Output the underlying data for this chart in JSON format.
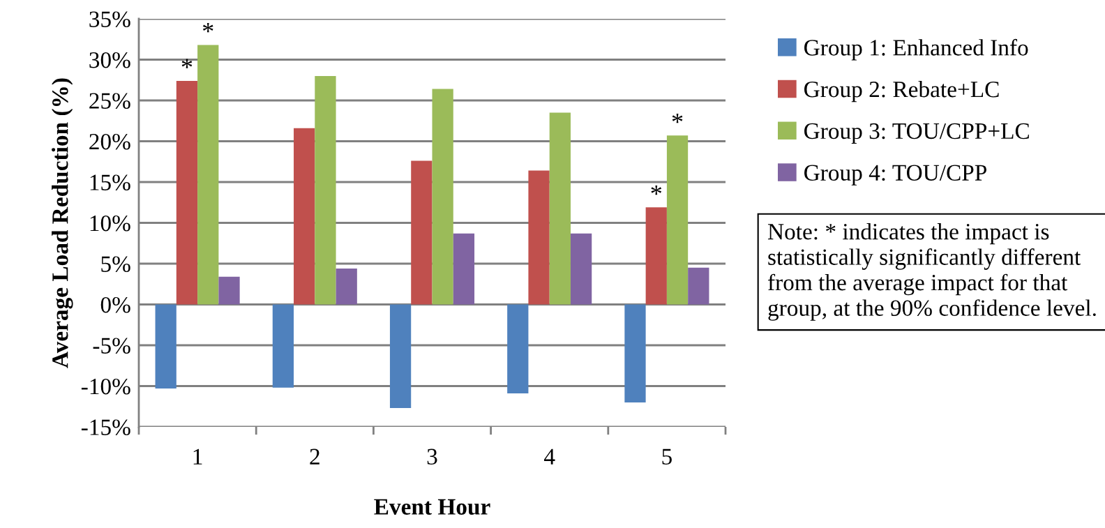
{
  "chart_data": {
    "type": "bar",
    "xlabel": "Event Hour",
    "ylabel": "Average Load Reduction (%)",
    "categories": [
      "1",
      "2",
      "3",
      "4",
      "5"
    ],
    "series": [
      {
        "name": "Group 1: Enhanced Info",
        "color": "#4f81bd",
        "values": [
          -10.3,
          -10.2,
          -12.7,
          -10.9,
          -12.0
        ]
      },
      {
        "name": "Group 2: Rebate+LC",
        "color": "#c0504d",
        "values": [
          27.4,
          21.6,
          17.6,
          16.4,
          11.9
        ]
      },
      {
        "name": "Group 3: TOU/CPP+LC",
        "color": "#9bbb59",
        "values": [
          31.8,
          28.0,
          26.4,
          23.5,
          20.7
        ]
      },
      {
        "name": "Group 4: TOU/CPP",
        "color": "#8064a2",
        "values": [
          3.4,
          4.4,
          8.7,
          8.7,
          4.5
        ]
      }
    ],
    "ylim": [
      -15,
      35
    ],
    "yticks": [
      {
        "value": -15,
        "label": "-15%"
      },
      {
        "value": -10,
        "label": "-10%"
      },
      {
        "value": -5,
        "label": "-5%"
      },
      {
        "value": 0,
        "label": "0%"
      },
      {
        "value": 5,
        "label": "5%"
      },
      {
        "value": 10,
        "label": "10%"
      },
      {
        "value": 15,
        "label": "15%"
      },
      {
        "value": 20,
        "label": "20%"
      },
      {
        "value": 25,
        "label": "25%"
      },
      {
        "value": 30,
        "label": "30%"
      },
      {
        "value": 35,
        "label": "35%"
      }
    ],
    "grid": "y",
    "legend": "right",
    "annotations": [
      {
        "text": "*",
        "x": "1",
        "y": 27.4
      },
      {
        "text": "*",
        "x": "1",
        "y": 31.8
      },
      {
        "text": "*",
        "x": "5",
        "y": 11.9
      },
      {
        "text": "*",
        "x": "5",
        "y": 20.7
      },
      "Note: * indicates the impact is statistically significantly different from the average impact for that group, at the 90% confidence level."
    ]
  }
}
